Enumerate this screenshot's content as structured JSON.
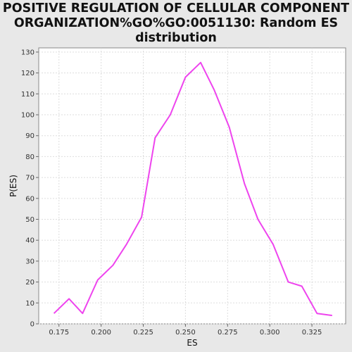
{
  "chart_data": {
    "type": "line",
    "title_lines": [
      "POSITIVE REGULATION OF CELLULAR COMPONENT",
      "ORGANIZATION%GO%GO:0051130: Random ES",
      "distribution"
    ],
    "xlabel": "ES",
    "ylabel": "P(ES)",
    "xlim": [
      0.163,
      0.345
    ],
    "ylim": [
      0,
      132
    ],
    "x_ticks": [
      0.175,
      0.2,
      0.225,
      0.25,
      0.275,
      0.3,
      0.325
    ],
    "x_tick_labels": [
      "0.175",
      "0.200",
      "0.225",
      "0.250",
      "0.275",
      "0.300",
      "0.325"
    ],
    "y_ticks": [
      0,
      10,
      20,
      30,
      40,
      50,
      60,
      70,
      80,
      90,
      100,
      110,
      120,
      130
    ],
    "grid": true,
    "line_color": "#ee44ee",
    "series": [
      {
        "x": [
          0.172,
          0.181,
          0.189,
          0.198,
          0.207,
          0.215,
          0.224,
          0.232,
          0.241,
          0.25,
          0.259,
          0.267,
          0.276,
          0.285,
          0.293,
          0.302,
          0.311,
          0.319,
          0.328,
          0.337
        ],
        "y": [
          5,
          12,
          5,
          21,
          28,
          38,
          51,
          89,
          100,
          118,
          125,
          112,
          94,
          67,
          50,
          38,
          20,
          18,
          5,
          4
        ]
      }
    ]
  }
}
